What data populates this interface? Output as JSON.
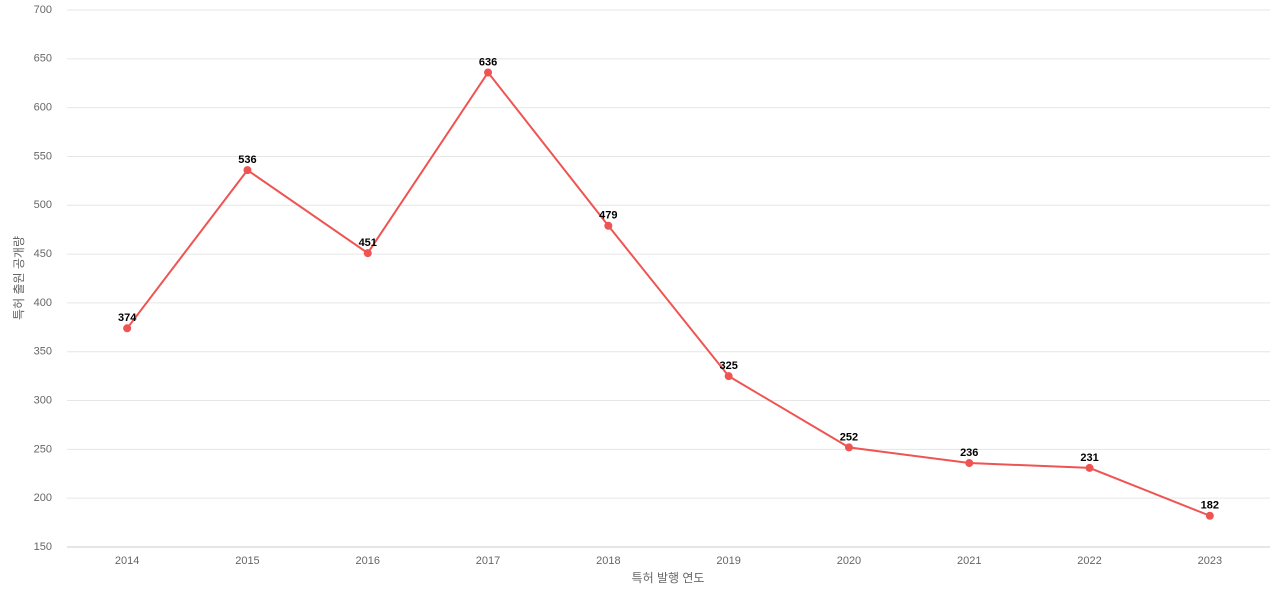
{
  "chart_data": {
    "type": "line",
    "x_label": "특허 발행 연도",
    "y_label": "특허 출원 공개량",
    "categories": [
      "2014",
      "2015",
      "2016",
      "2017",
      "2018",
      "2019",
      "2020",
      "2021",
      "2022",
      "2023"
    ],
    "series": [
      {
        "color": "#ee5552",
        "values": [
          374,
          536,
          451,
          636,
          479,
          325,
          252,
          236,
          231,
          182
        ]
      }
    ],
    "ylim": [
      150,
      700
    ],
    "yticks": [
      150,
      200,
      250,
      300,
      350,
      400,
      450,
      500,
      550,
      600,
      650,
      700
    ],
    "grid": true
  }
}
